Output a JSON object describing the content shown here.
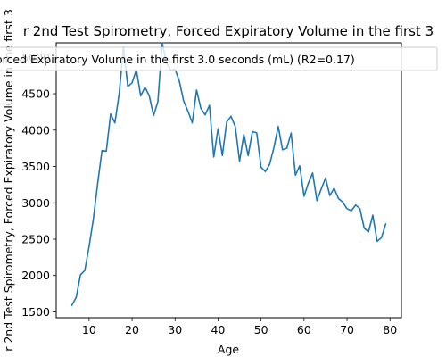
{
  "chart_data": {
    "type": "line",
    "title": "r 2nd Test Spirometry, Forced Expiratory Volume in the first 3",
    "xlabel": "Age",
    "ylabel": "r 2nd Test Spirometry, Forced Expiratory Volume in the first 3",
    "legend_label": "orced Expiratory Volume in the first 3.0 seconds (mL) (R2=0.17)",
    "legend_position": "top",
    "grid": false,
    "line_color": "#1f77b4",
    "xlim": [
      2.35,
      82.65
    ],
    "ylim": [
      1420,
      5200
    ],
    "xticks": [
      10,
      20,
      30,
      40,
      50,
      60,
      70,
      80
    ],
    "yticks": [
      1500,
      2000,
      2500,
      3000,
      3500,
      4000,
      4500,
      5000
    ],
    "series": [
      {
        "x": [
          6,
          7,
          8,
          9,
          10,
          11,
          12,
          13,
          14,
          15,
          16,
          17,
          18,
          19,
          20,
          21,
          22,
          23,
          24,
          25,
          26,
          27,
          28,
          29,
          30,
          31,
          32,
          33,
          34,
          35,
          36,
          37,
          38,
          39,
          40,
          41,
          42,
          43,
          44,
          45,
          46,
          47,
          48,
          49,
          50,
          51,
          52,
          53,
          54,
          55,
          56,
          57,
          58,
          59,
          60,
          61,
          62,
          63,
          64,
          65,
          66,
          67,
          68,
          69,
          70,
          71,
          72,
          73,
          74,
          75,
          76,
          77,
          78,
          79
        ],
        "y": [
          1590,
          1700,
          2010,
          2070,
          2400,
          2780,
          3270,
          3720,
          3710,
          4220,
          4100,
          4500,
          5140,
          4600,
          4650,
          4830,
          4470,
          4590,
          4470,
          4200,
          4390,
          5200,
          4930,
          4820,
          4840,
          4670,
          4400,
          4260,
          4100,
          4550,
          4300,
          4210,
          4340,
          3630,
          4020,
          3650,
          4110,
          4190,
          4050,
          3570,
          3940,
          3650,
          3980,
          3960,
          3490,
          3430,
          3530,
          3760,
          4050,
          3730,
          3750,
          3960,
          3380,
          3510,
          3090,
          3270,
          3410,
          3030,
          3190,
          3340,
          3100,
          3200,
          3060,
          3010,
          2920,
          2890,
          2970,
          2920,
          2650,
          2600,
          2830,
          2470,
          2520,
          2710
        ]
      }
    ]
  }
}
